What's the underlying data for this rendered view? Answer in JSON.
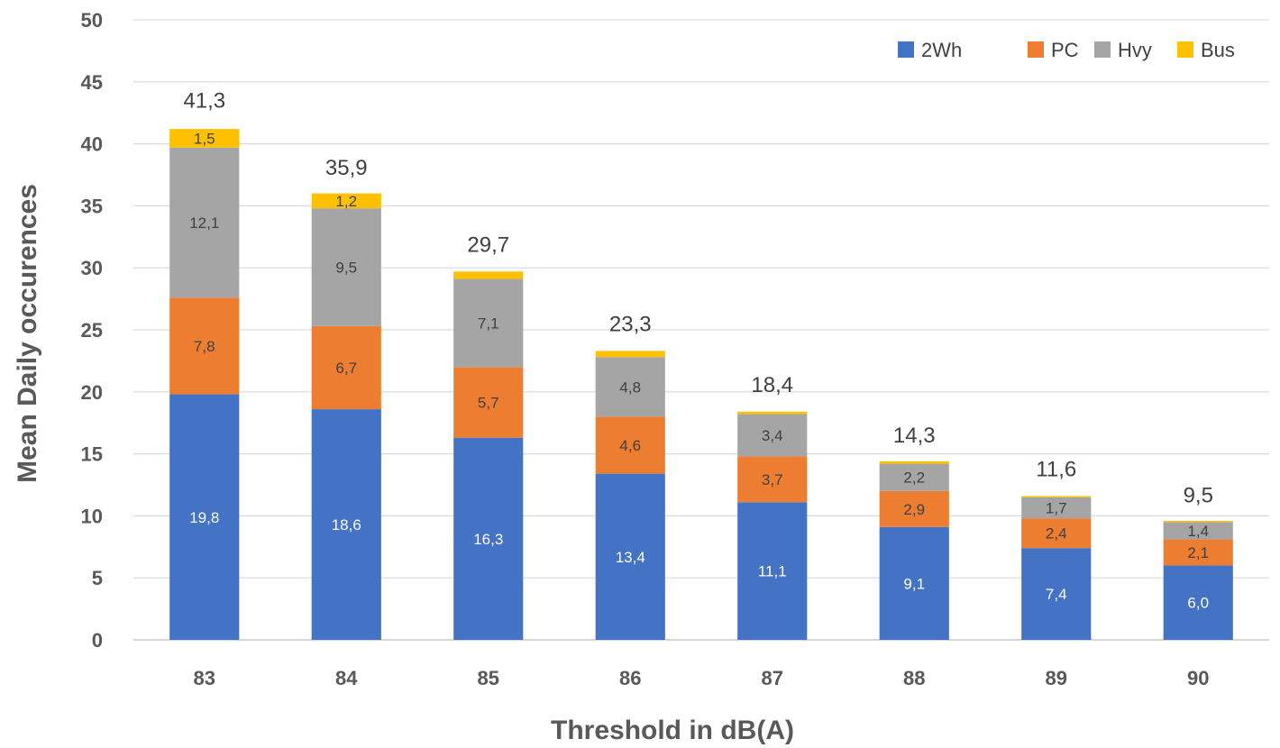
{
  "chart_data": {
    "type": "bar",
    "stacked": true,
    "title": "",
    "xlabel": "Threshold in dB(A)",
    "ylabel": "Mean Daily occurences",
    "ylim": [
      0,
      50
    ],
    "yticks": [
      0,
      5,
      10,
      15,
      20,
      25,
      30,
      35,
      40,
      45,
      50
    ],
    "grid": true,
    "legend_position": "top-right",
    "categories": [
      "83",
      "84",
      "85",
      "86",
      "87",
      "88",
      "89",
      "90"
    ],
    "series": [
      {
        "name": "2Wh",
        "color": "#4472C4",
        "label_color": "#ffffff",
        "values": [
          19.8,
          18.6,
          16.3,
          13.4,
          11.1,
          9.1,
          7.4,
          6.0
        ],
        "labels": [
          "19,8",
          "18,6",
          "16,3",
          "13,4",
          "11,1",
          "9,1",
          "7,4",
          "6,0"
        ]
      },
      {
        "name": "PC",
        "color": "#ED7D31",
        "label_color": "#404040",
        "values": [
          7.8,
          6.7,
          5.7,
          4.6,
          3.7,
          2.9,
          2.4,
          2.1
        ],
        "labels": [
          "7,8",
          "6,7",
          "5,7",
          "4,6",
          "3,7",
          "2,9",
          "2,4",
          "2,1"
        ]
      },
      {
        "name": "Hvy",
        "color": "#A5A5A5",
        "label_color": "#404040",
        "values": [
          12.1,
          9.5,
          7.1,
          4.8,
          3.4,
          2.2,
          1.7,
          1.4
        ],
        "labels": [
          "12,1",
          "9,5",
          "7,1",
          "4,8",
          "3,4",
          "2,2",
          "1,7",
          "1,4"
        ]
      },
      {
        "name": "Bus",
        "color": "#FFC000",
        "label_color": "#404040",
        "values": [
          1.5,
          1.2,
          0.6,
          0.5,
          0.2,
          0.2,
          0.1,
          0.1
        ],
        "labels": [
          "1,5",
          "1,2",
          "",
          "",
          "",
          "",
          "",
          ""
        ]
      }
    ],
    "totals": [
      "41,3",
      "35,9",
      "29,7",
      "23,3",
      "18,4",
      "14,3",
      "11,6",
      "9,5"
    ],
    "total_values": [
      41.3,
      35.9,
      29.7,
      23.3,
      18.4,
      14.3,
      11.6,
      9.5
    ]
  }
}
